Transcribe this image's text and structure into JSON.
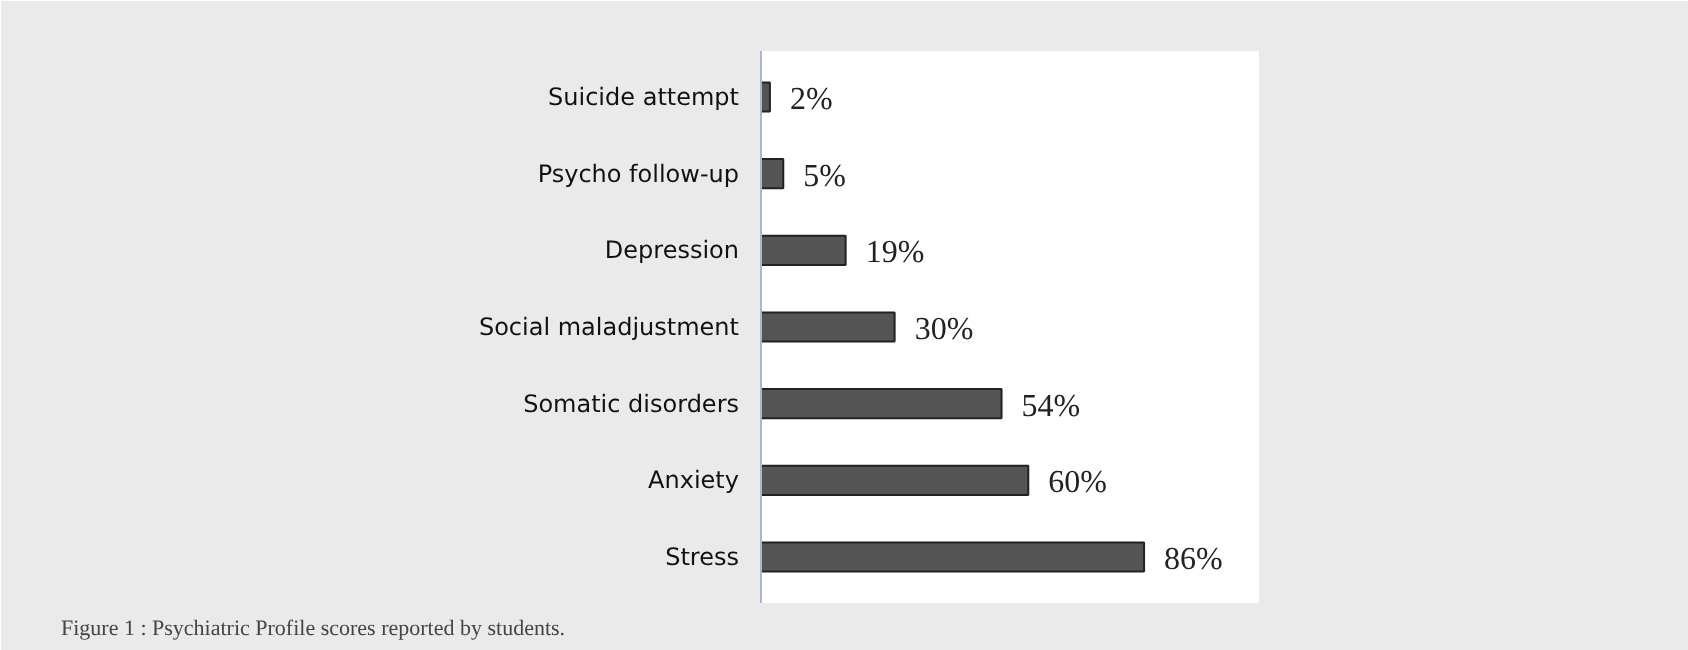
{
  "chart_data": {
    "type": "bar",
    "orientation": "horizontal",
    "categories": [
      "Suicide attempt",
      "Psycho follow-up",
      "Depression",
      "Social maladjustment",
      "Somatic disorders",
      "Anxiety",
      "Stress"
    ],
    "values": [
      2,
      5,
      19,
      30,
      54,
      60,
      86
    ],
    "value_labels": [
      "2%",
      "5%",
      "19%",
      "30%",
      "54%",
      "60%",
      "86%"
    ],
    "color": "#555555",
    "grid": false,
    "annotations": [
      "Figure 1 : Psychiatric Profile scores reported by students."
    ]
  }
}
